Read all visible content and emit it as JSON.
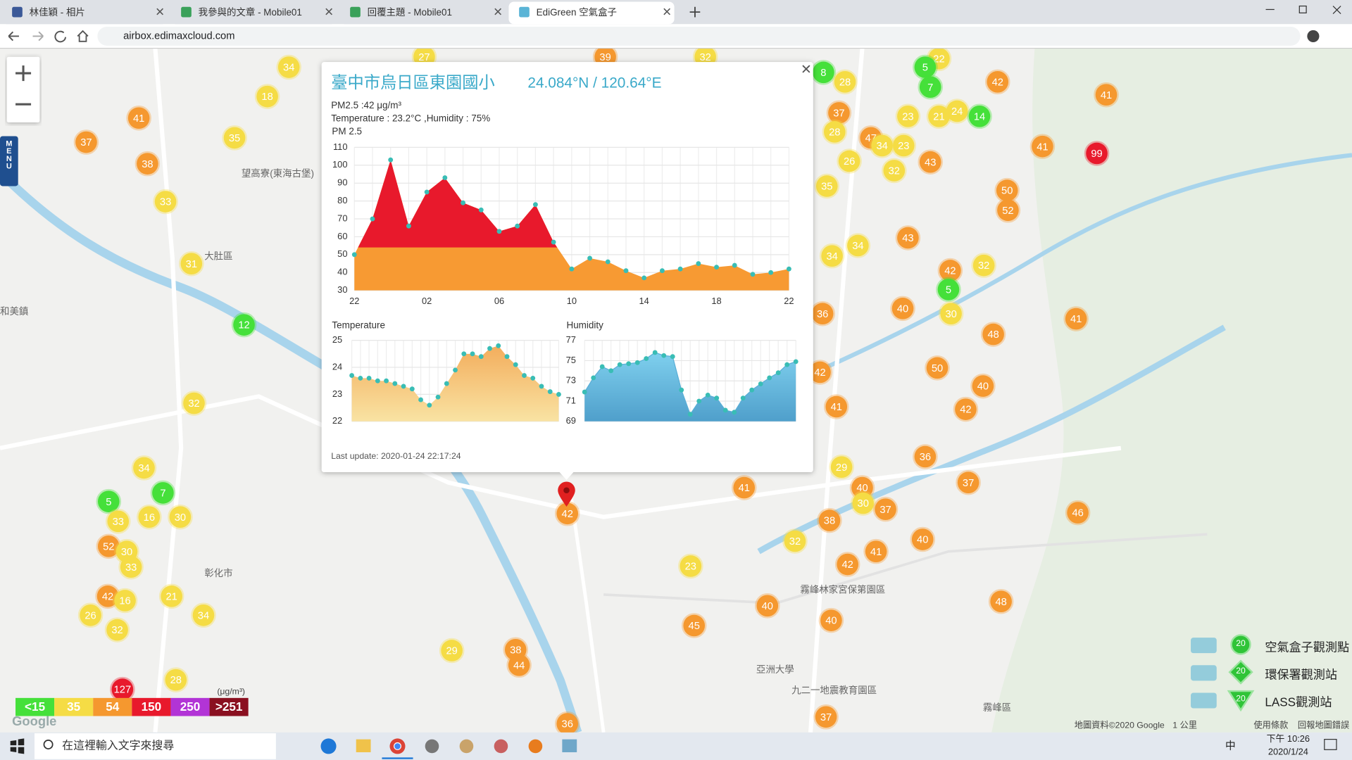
{
  "tabs": [
    "林佳穎 - 相片",
    "我參與的文章 - Mobile01",
    "回覆主題 - Mobile01",
    "EdiGreen 空氣盒子"
  ],
  "url": "airbox.edimaxcloud.com",
  "menu": "MENU",
  "map_labels": [
    "大肚區",
    "彰化市",
    "和美鎮",
    "霧峰區",
    "望高寮(東海古堡)",
    "亞洲大學",
    "霧峰林家宮保第園區",
    "九二一地震教育園區"
  ],
  "markers": [
    34,
    18,
    41,
    37,
    35,
    38,
    33,
    31,
    12,
    32,
    34,
    7,
    5,
    33,
    16,
    30,
    52,
    30,
    33,
    42,
    16,
    21,
    34,
    26,
    32,
    127,
    28,
    27,
    39,
    32,
    22,
    5,
    7,
    8,
    28,
    42,
    41,
    37,
    23,
    21,
    24,
    14,
    28,
    47,
    34,
    23,
    43,
    41,
    99,
    26,
    32,
    35,
    50,
    52,
    43,
    34,
    34,
    42,
    32,
    5,
    40,
    30,
    36,
    41,
    48,
    50,
    40,
    42,
    41,
    42,
    36,
    29,
    37,
    40,
    30,
    37,
    41,
    38,
    46,
    32,
    40,
    41,
    42,
    23,
    40,
    40,
    48,
    45,
    38,
    44,
    29,
    36,
    37,
    42
  ],
  "popup": {
    "title": "臺中市烏日區東園國小",
    "coords": "24.084°N / 120.64°E",
    "pm_line": "PM2.5 :42 μg/m³",
    "env_line": "Temperature : 23.2°C ,Humidity : 75%",
    "updated": "Last update: 2020-01-24 22:17:24",
    "charts": [
      {
        "type": "area",
        "title": "PM 2.5",
        "categories": [
          "22",
          null,
          null,
          null,
          "02",
          null,
          null,
          null,
          "06",
          null,
          null,
          null,
          "10",
          null,
          null,
          null,
          "14",
          null,
          null,
          null,
          "18",
          null,
          null,
          null,
          "22"
        ],
        "values": [
          50,
          70,
          103,
          66,
          85,
          93,
          79,
          75,
          63,
          66,
          78,
          57,
          42,
          48,
          46,
          41,
          37,
          41,
          42,
          45,
          43,
          44,
          39,
          40,
          42
        ],
        "ylim": [
          30,
          110
        ],
        "yticks": [
          30,
          40,
          50,
          60,
          70,
          80,
          90,
          100,
          110
        ]
      },
      {
        "type": "area",
        "title": "Temperature",
        "values": [
          23.7,
          23.6,
          23.6,
          23.5,
          23.5,
          23.4,
          23.3,
          23.2,
          22.8,
          22.6,
          22.9,
          23.4,
          23.9,
          24.5,
          24.5,
          24.4,
          24.7,
          24.8,
          24.4,
          24.1,
          23.7,
          23.6,
          23.3,
          23.1,
          23.0
        ],
        "ylim": [
          22,
          25
        ],
        "yticks": [
          22,
          23,
          24,
          25
        ]
      },
      {
        "type": "area",
        "title": "Humidity",
        "values": [
          71.9,
          73.3,
          74.4,
          74.0,
          74.6,
          74.7,
          74.8,
          75.2,
          75.8,
          75.5,
          75.4,
          72.1,
          69.7,
          71.0,
          71.6,
          71.3,
          70.1,
          69.9,
          71.3,
          72.1,
          72.7,
          73.3,
          73.8,
          74.6,
          74.9
        ],
        "ylim": [
          69,
          77
        ],
        "yticks": [
          69,
          71,
          73,
          75,
          77
        ]
      }
    ]
  },
  "legend": {
    "unit": "(μg/m³)",
    "items": [
      {
        "label": "<15",
        "color": "#45e03a"
      },
      {
        "label": "35",
        "color": "#f5dc45"
      },
      {
        "label": "54",
        "color": "#f5982f"
      },
      {
        "label": "150",
        "color": "#e8192c"
      },
      {
        "label": "250",
        "color": "#b234d6"
      },
      {
        "label": ">251",
        "color": "#8a1020"
      }
    ]
  },
  "station_legend": [
    {
      "label": "空氣盒子觀測點",
      "count": 20
    },
    {
      "label": "環保署觀測站",
      "count": 20
    },
    {
      "label": "LASS觀測站",
      "count": 20
    }
  ],
  "logo": "Google",
  "footer": [
    "地圖資料©2020 Google",
    "1 公里",
    "使用條款",
    "回報地圖錯誤"
  ],
  "taskbar": {
    "search": "在這裡輸入文字來搜尋",
    "ime": "中",
    "time": "下午 10:26",
    "date": "2020/1/24"
  }
}
